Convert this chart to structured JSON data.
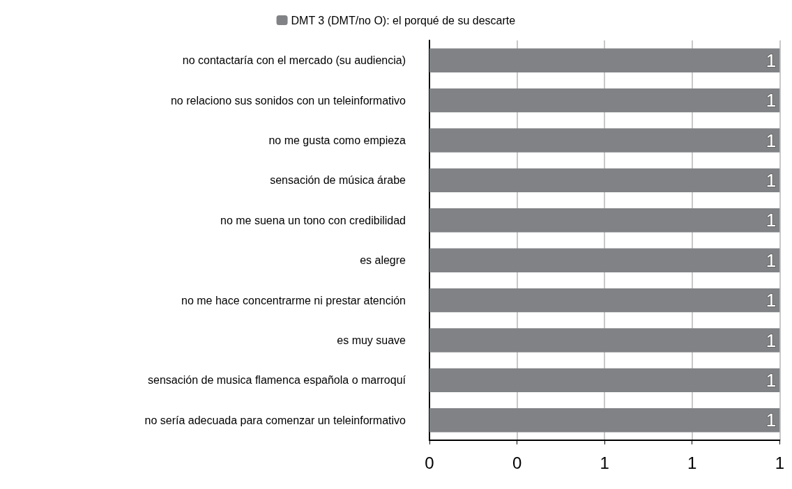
{
  "chart_data": {
    "type": "bar",
    "orientation": "horizontal",
    "categories": [
      "no contactaría con el mercado (su audiencia)",
      "no relaciono sus sonidos con un teleinformativo",
      "no me gusta como empieza",
      "sensación de música árabe",
      "no me suena un tono con credibilidad",
      "es alegre",
      "no me hace concentrarme ni prestar atención",
      "es muy suave",
      "sensación de musica flamenca española o marroquí",
      "no sería adecuada para comenzar un teleinformativo"
    ],
    "series": [
      {
        "name": "DMT 3 (DMT/no O): el porqué de su descarte",
        "color": "#808285",
        "values": [
          1,
          1,
          1,
          1,
          1,
          1,
          1,
          1,
          1,
          1
        ]
      }
    ],
    "xlim": [
      0,
      1
    ],
    "xticks": [
      {
        "value": 0,
        "label": "0"
      },
      {
        "value": 0.25,
        "label": "0"
      },
      {
        "value": 0.5,
        "label": "1"
      },
      {
        "value": 0.75,
        "label": "1"
      },
      {
        "value": 1,
        "label": "1"
      }
    ],
    "grid": "x",
    "legend": "top",
    "data_labels": true
  }
}
